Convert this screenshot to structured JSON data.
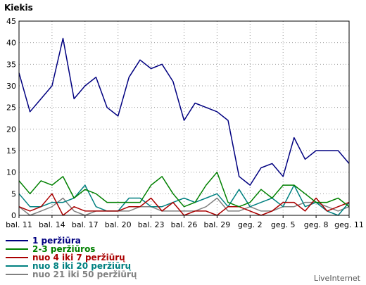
{
  "chart_data": {
    "type": "line",
    "title": "Kiekis",
    "ylim": [
      0,
      45
    ],
    "yticks": [
      0,
      5,
      10,
      15,
      20,
      25,
      30,
      35,
      40,
      45
    ],
    "grid": true,
    "legend_position": "bottom-left",
    "x_tick_labels": [
      "bal. 11",
      "bal. 14",
      "bal. 17",
      "bal. 20",
      "bal. 23",
      "bal. 26",
      "bal. 29",
      "geg. 2",
      "geg. 5",
      "geg. 8",
      "geg. 11"
    ],
    "series": [
      {
        "name": "1 peržiūra",
        "color": "#000080",
        "values": [
          33,
          24,
          27,
          30,
          41,
          27,
          30,
          32,
          25,
          23,
          32,
          36,
          34,
          35,
          31,
          22,
          26,
          25,
          24,
          22,
          9,
          7,
          11,
          12,
          9,
          18,
          13,
          15,
          15,
          15,
          12
        ]
      },
      {
        "name": "2-3 peržiūros",
        "color": "#008000",
        "values": [
          8,
          5,
          8,
          7,
          9,
          4,
          6,
          5,
          3,
          3,
          3,
          3,
          7,
          9,
          5,
          2,
          3,
          7,
          10,
          3,
          2,
          3,
          6,
          4,
          7,
          7,
          5,
          3,
          3,
          4,
          2
        ]
      },
      {
        "name": "nuo 4 iki 7 peržiūrų",
        "color": "#aa0000",
        "values": [
          2,
          1,
          2,
          5,
          0,
          2,
          1,
          1,
          1,
          1,
          2,
          2,
          4,
          1,
          3,
          0,
          1,
          1,
          0,
          2,
          2,
          1,
          0,
          1,
          3,
          3,
          1,
          4,
          1,
          2,
          3
        ]
      },
      {
        "name": "nuo 8 iki 20 peržiūrų",
        "color": "#008080",
        "values": [
          5,
          2,
          2,
          3,
          3,
          4,
          7,
          2,
          1,
          1,
          4,
          4,
          2,
          2,
          3,
          4,
          3,
          4,
          5,
          2,
          6,
          2,
          3,
          4,
          2,
          7,
          2,
          3,
          1,
          0,
          3
        ]
      },
      {
        "name": "nuo 21 iki 50 peržiūrų",
        "color": "#808080",
        "values": [
          2,
          0,
          1,
          2,
          4,
          1,
          0,
          1,
          1,
          1,
          1,
          2,
          2,
          1,
          1,
          1,
          1,
          2,
          4,
          1,
          1,
          2,
          1,
          1,
          2,
          2,
          3,
          3,
          2,
          1,
          2
        ]
      }
    ]
  },
  "brand": "LiveInternet"
}
